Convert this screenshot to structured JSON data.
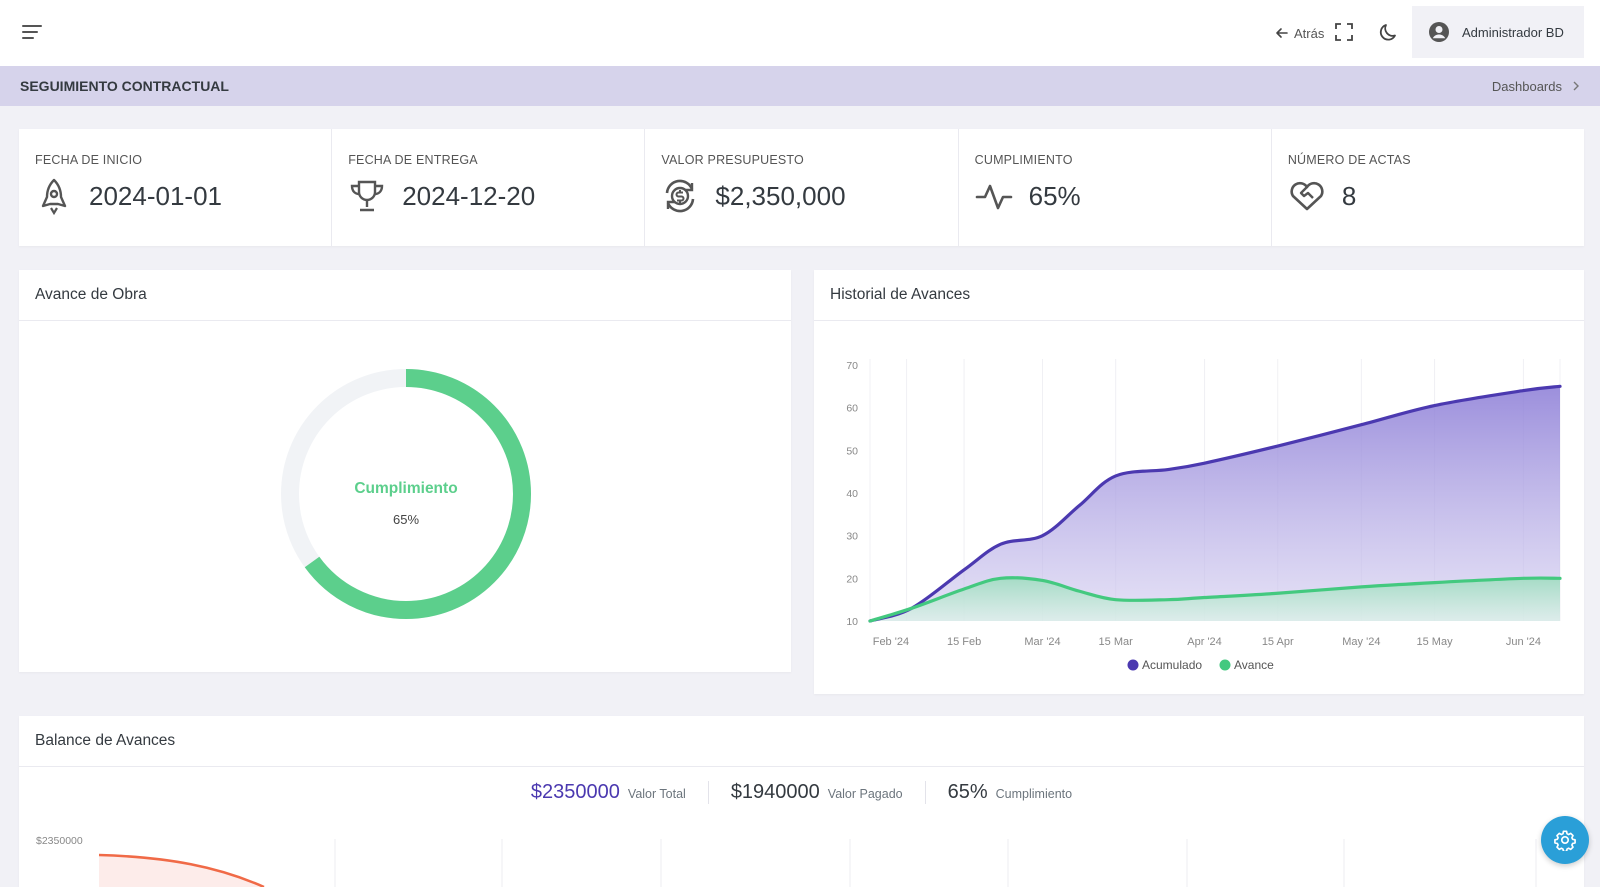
{
  "header": {
    "back_label": "Atrás",
    "user_name": "Administrador BD"
  },
  "titlebar": {
    "title": "SEGUIMIENTO CONTRACTUAL",
    "breadcrumb": "Dashboards"
  },
  "stats": [
    {
      "label": "FECHA DE INICIO",
      "value": "2024-01-01",
      "icon": "rocket-icon"
    },
    {
      "label": "FECHA DE ENTREGA",
      "value": "2024-12-20",
      "icon": "trophy-icon"
    },
    {
      "label": "VALOR PRESUPUESTO",
      "value": "$2,350,000",
      "icon": "dollar-refresh-icon"
    },
    {
      "label": "CUMPLIMIENTO",
      "value": "65%",
      "icon": "pulse-icon"
    },
    {
      "label": "NÚMERO DE ACTAS",
      "value": "8",
      "icon": "heart-handshake-icon"
    }
  ],
  "avance": {
    "title": "Avance de Obra",
    "center_label": "Cumplimiento",
    "center_value": "65%",
    "percent": 65,
    "color": "#5ccf8c",
    "track_color": "#f1f3f6"
  },
  "historial": {
    "title": "Historial de Avances"
  },
  "balance": {
    "title": "Balance de Avances",
    "items": [
      {
        "value": "$2350000",
        "label": "Valor Total"
      },
      {
        "value": "$1940000",
        "label": "Valor Pagado"
      },
      {
        "value": "65%",
        "label": "Cumplimiento"
      }
    ],
    "y_label": "$2350000"
  },
  "colors": {
    "accent": "#4b39b0",
    "green": "#43c97f",
    "orange": "#f06a47",
    "titlebar": "#d6d3eb",
    "fab": "#2a9fd8"
  },
  "chart_data": {
    "type": "area",
    "x": [
      "2024-01-28",
      "2024-02-05",
      "2024-02-15",
      "2024-02-22",
      "2024-03-01",
      "2024-03-08",
      "2024-03-15",
      "2024-03-25",
      "2024-04-01",
      "2024-04-15",
      "2024-05-01",
      "2024-05-15",
      "2024-06-01",
      "2024-06-08"
    ],
    "series": [
      {
        "name": "Acumulado",
        "color": "#4b39b0",
        "values": [
          10,
          13,
          22,
          28,
          30,
          37,
          44,
          45.5,
          47,
          51,
          56,
          60.5,
          64,
          65
        ]
      },
      {
        "name": "Avance",
        "color": "#43c97f",
        "values": [
          10,
          13,
          17.5,
          20,
          19.5,
          17,
          15,
          15,
          15.5,
          16.5,
          18,
          19,
          20,
          20
        ]
      }
    ],
    "x_ticks": [
      "Feb '24",
      "15 Feb",
      "Mar '24",
      "15 Mar",
      "Apr '24",
      "15 Apr",
      "May '24",
      "15 May",
      "Jun '24"
    ],
    "y_ticks": [
      "10",
      "20",
      "30",
      "40",
      "50",
      "60",
      "70"
    ],
    "ylim": [
      10,
      70
    ],
    "grid": true,
    "legend": "bottom-center"
  }
}
